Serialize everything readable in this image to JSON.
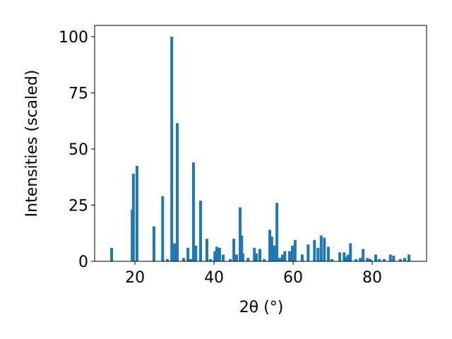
{
  "chart_data": {
    "type": "bar",
    "x_label": "2θ (°)",
    "y_label": "Intensities (scaled)",
    "color": "#1f77b4",
    "x": [
      14.1,
      19.3,
      19.6,
      20.5,
      24.8,
      27.0,
      28.2,
      29.3,
      30.0,
      30.7,
      32.3,
      33.4,
      34.1,
      34.8,
      35.4,
      36.6,
      38.2,
      39.1,
      40.2,
      40.7,
      41.4,
      42.3,
      44.1,
      45.0,
      45.7,
      46.6,
      47.0,
      47.3,
      48.6,
      50.2,
      50.7,
      51.6,
      52.7,
      54.1,
      54.6,
      55.2,
      55.9,
      56.6,
      57.3,
      57.9,
      59.1,
      59.8,
      60.5,
      62.3,
      63.8,
      65.4,
      66.3,
      67.1,
      67.9,
      68.9,
      69.8,
      71.8,
      72.9,
      73.4,
      73.9,
      74.5,
      75.9,
      77.0,
      77.7,
      78.8,
      79.5,
      80.9,
      81.8,
      83.0,
      84.6,
      85.4,
      87.1,
      88.2,
      89.3
    ],
    "values": [
      6,
      23,
      39,
      42.5,
      15.5,
      29,
      1,
      100,
      8,
      61.5,
      1.5,
      6,
      1,
      44,
      7,
      27,
      10,
      1,
      4.5,
      6.5,
      6,
      3,
      1,
      10,
      3,
      24,
      11.5,
      3.5,
      1.5,
      6,
      3.5,
      5.5,
      1,
      14,
      11,
      7,
      26,
      1.5,
      3,
      4.5,
      4.5,
      7,
      9.5,
      3,
      7.5,
      9.5,
      6,
      11.5,
      10.5,
      6.5,
      1,
      4,
      4,
      2,
      3,
      8,
      1,
      1.5,
      5.5,
      1.5,
      1,
      3,
      1,
      1,
      3,
      2.5,
      1,
      1.5,
      3
    ],
    "xlim": [
      9.8,
      93.75
    ],
    "ylim": [
      0,
      105
    ],
    "xticks": [
      20,
      40,
      60,
      80
    ],
    "yticks": [
      0,
      25,
      50,
      75,
      100
    ]
  }
}
